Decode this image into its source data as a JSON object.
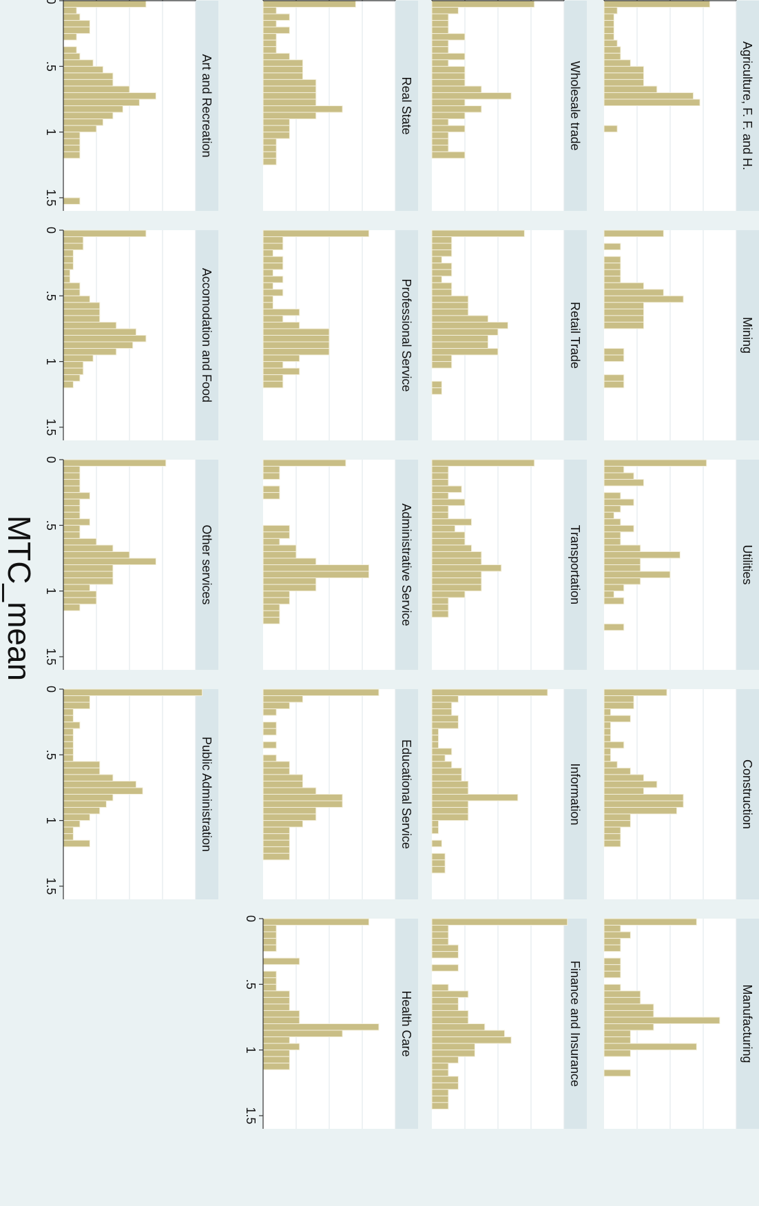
{
  "chart_data": {
    "type": "bar",
    "orientation": "rotated 90 degrees clockwise",
    "layout": "5 columns x 4 rows of small-multiple histograms; bottom row has 4 panels",
    "xlabel": "MTC_mean",
    "ylabel": "Density",
    "xlim": [
      0,
      1.6
    ],
    "ylim": [
      0,
      4
    ],
    "x_ticks": [
      "0",
      ".5",
      "1",
      "1.5"
    ],
    "y_ticks": [
      "0",
      "1",
      "2",
      "3",
      "4"
    ],
    "grid": "horizontal density gridlines on",
    "bar_color": "#c9be86",
    "bar_edge_color": "#f4f0dd",
    "strip_color": "#d9e6ea",
    "bin_width": 0.05,
    "panels": [
      {
        "title": "Agriculture, F. F. and H.",
        "values": [
          3.2,
          0.4,
          0.3,
          0.3,
          0.3,
          0.3,
          0.4,
          0.5,
          0.5,
          0.8,
          1.2,
          1.2,
          1.2,
          1.6,
          2.7,
          2.9,
          0,
          0,
          0,
          0.4
        ]
      },
      {
        "title": "Mining",
        "values": [
          1.8,
          0,
          0.5,
          0,
          0.5,
          0.5,
          0.5,
          0.5,
          1.2,
          1.8,
          2.4,
          1.2,
          1.2,
          1.2,
          1.2,
          0,
          0,
          0,
          0.6,
          0.6,
          0,
          0,
          0.6,
          0.6
        ]
      },
      {
        "title": "Utilities",
        "values": [
          3.1,
          0.6,
          0.9,
          1.2,
          0,
          0.5,
          0.9,
          0.5,
          0.3,
          0.5,
          0.9,
          0.5,
          0.5,
          1.1,
          2.3,
          1.1,
          1.1,
          2.0,
          1.1,
          0.6,
          0.3,
          0.6,
          0,
          0,
          0,
          0.6
        ]
      },
      {
        "title": "Construction",
        "values": [
          1.9,
          0.9,
          0.9,
          0.2,
          0.8,
          0.2,
          0.2,
          0.2,
          0.6,
          0.2,
          0.2,
          0.4,
          0.8,
          1.2,
          1.6,
          1.2,
          2.4,
          2.4,
          2.2,
          0.8,
          0.8,
          0.5,
          0.5,
          0.5
        ]
      },
      {
        "title": "Manufacturing",
        "values": [
          2.8,
          0.5,
          0.8,
          0.5,
          0.5,
          0,
          0.5,
          0.5,
          0.5,
          0,
          0.5,
          1.1,
          1.1,
          1.5,
          1.5,
          3.5,
          1.5,
          0.8,
          0.8,
          2.8,
          0.8,
          0,
          0,
          0.8
        ]
      },
      {
        "title": "Wholesale trade",
        "values": [
          3.1,
          0.8,
          0.5,
          0.5,
          0.5,
          1.0,
          0.5,
          0.5,
          1.0,
          0.5,
          1.0,
          1.0,
          1.0,
          1.5,
          2.4,
          1.0,
          1.5,
          1.0,
          0.5,
          1.0,
          0.5,
          0.5,
          0.5,
          1.0
        ]
      },
      {
        "title": "Retail Trade",
        "values": [
          2.8,
          0.6,
          0.6,
          0.6,
          0.3,
          0.6,
          0.6,
          0.3,
          0.6,
          0.6,
          1.1,
          1.1,
          1.1,
          1.7,
          2.3,
          2.0,
          1.7,
          1.7,
          2.0,
          0.6,
          0.6,
          0,
          0,
          0.3,
          0.3
        ]
      },
      {
        "title": "Transportation",
        "values": [
          3.1,
          0.5,
          0.5,
          0.5,
          0.9,
          0.5,
          1.0,
          0.5,
          0.5,
          1.2,
          0.7,
          1.0,
          1.0,
          1.2,
          1.5,
          1.5,
          2.1,
          1.5,
          1.5,
          1.5,
          1.0,
          0.5,
          0.5,
          0.5
        ]
      },
      {
        "title": "Information",
        "values": [
          3.5,
          0.8,
          0.6,
          0.6,
          0.8,
          0.8,
          0.2,
          0.2,
          0.2,
          0.6,
          0.4,
          0.6,
          0.9,
          0.9,
          1.1,
          1.1,
          2.6,
          1.1,
          1.1,
          1.1,
          0.2,
          0.2,
          0,
          0.3,
          0,
          0.4,
          0.4,
          0.4
        ]
      },
      {
        "title": "Finance and Insurance",
        "values": [
          4.1,
          0.5,
          0.5,
          0.5,
          0.8,
          0.8,
          0,
          0.8,
          0,
          0,
          0.5,
          1.1,
          0.8,
          0.8,
          1.1,
          1.1,
          1.6,
          2.2,
          2.4,
          1.3,
          1.3,
          0.8,
          0.5,
          0.5,
          0.8,
          0.8,
          0.5,
          0.5,
          0.5
        ]
      },
      {
        "title": "Real State",
        "values": [
          2.8,
          0.4,
          0.8,
          0.4,
          0.8,
          0.4,
          0.4,
          0.4,
          0.8,
          1.2,
          1.2,
          1.2,
          1.6,
          1.6,
          1.6,
          1.6,
          2.4,
          1.6,
          0.8,
          0.8,
          0.8,
          0.4,
          0.4,
          0.4,
          0.4
        ]
      },
      {
        "title": "Professional Service",
        "values": [
          3.2,
          0.6,
          0.6,
          0.3,
          0.6,
          0.6,
          0.3,
          0.6,
          0.3,
          0.6,
          0.3,
          0.3,
          1.1,
          0.6,
          1.1,
          2.0,
          2.0,
          2.0,
          2.0,
          1.1,
          0.6,
          1.1,
          0.6,
          0.6
        ]
      },
      {
        "title": "Administrative Service",
        "values": [
          2.5,
          0.5,
          0.5,
          0,
          0.5,
          0.5,
          0,
          0,
          0,
          0,
          0.8,
          0.8,
          0.5,
          1.0,
          1.0,
          1.6,
          3.2,
          3.2,
          1.6,
          1.6,
          0.8,
          0.8,
          0.5,
          0.5,
          0.5
        ]
      },
      {
        "title": "Educational Service",
        "values": [
          3.5,
          1.2,
          0.8,
          0.4,
          0,
          0.4,
          0.4,
          0,
          0.4,
          0,
          0.4,
          0.8,
          0.8,
          1.2,
          1.2,
          1.6,
          2.4,
          2.4,
          1.6,
          1.6,
          1.2,
          0.8,
          0.8,
          0.8,
          0.8,
          0.8
        ]
      },
      {
        "title": "Health Care",
        "values": [
          3.2,
          0.4,
          0.4,
          0.4,
          0.4,
          0,
          1.1,
          0,
          0.4,
          0.4,
          0.4,
          0.8,
          0.8,
          0.8,
          1.1,
          1.1,
          3.5,
          2.4,
          0.8,
          1.1,
          0.8,
          0.8,
          0.8
        ]
      },
      {
        "title": "Art and Recreation",
        "values": [
          2.5,
          0.4,
          0.5,
          0.8,
          0.8,
          0.4,
          0,
          0.4,
          0.5,
          0.9,
          1.2,
          1.5,
          1.5,
          2.0,
          2.8,
          2.3,
          1.8,
          1.5,
          1.2,
          1.0,
          0.5,
          0.5,
          0.5,
          0.5,
          0,
          0,
          0,
          0,
          0,
          0,
          0.5
        ]
      },
      {
        "title": "Accomodation and Food",
        "values": [
          2.5,
          0.6,
          0.6,
          0.3,
          0.3,
          0.3,
          0.2,
          0.2,
          0.5,
          0.5,
          0.8,
          1.1,
          1.1,
          1.1,
          1.6,
          2.2,
          2.5,
          2.1,
          1.6,
          0.9,
          0.6,
          0.6,
          0.5,
          0.3
        ]
      },
      {
        "title": "Other services",
        "values": [
          3.1,
          0.5,
          0.5,
          0.5,
          0.5,
          0.8,
          0.5,
          0.5,
          0.5,
          0.8,
          0.5,
          0.5,
          1.0,
          1.5,
          2.0,
          2.8,
          1.5,
          1.5,
          1.5,
          0.8,
          1.0,
          1.0,
          0.5
        ]
      },
      {
        "title": "Public Administration",
        "values": [
          4.2,
          0.8,
          0.8,
          0.3,
          0.3,
          0.5,
          0.3,
          0.3,
          0.3,
          0.3,
          0.3,
          1.1,
          1.1,
          1.5,
          2.2,
          2.4,
          1.5,
          1.3,
          1.1,
          0.8,
          0.5,
          0.3,
          0.3,
          0.8
        ]
      }
    ]
  }
}
